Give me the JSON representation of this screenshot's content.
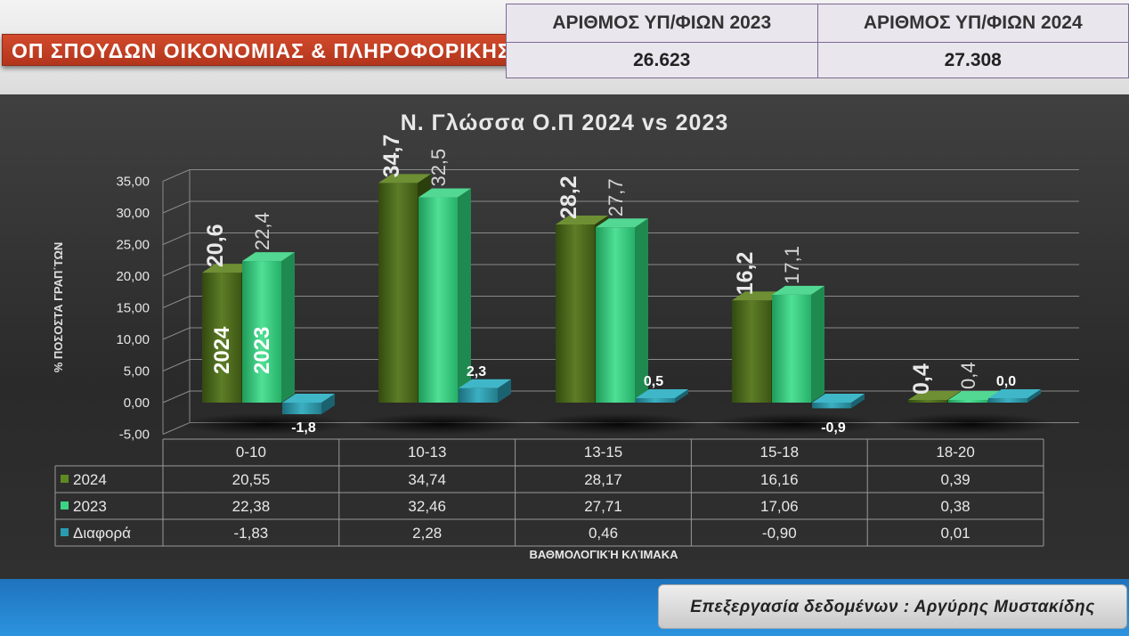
{
  "header": {
    "title": "ΟΠ ΣΠΟΥΔΩΝ ΟΙΚΟΝΟΜΙΑΣ & ΠΛΗΡΟΦΟΡΙΚΗΣ",
    "stats": [
      {
        "label": "ΑΡΙΘΜΟΣ ΥΠ/ΦΙΩΝ 2023",
        "value": "26.623"
      },
      {
        "label": "ΑΡΙΘΜΟΣ ΥΠ/ΦΙΩΝ 2024",
        "value": "27.308"
      }
    ]
  },
  "footer": {
    "credit": "Επεξεργασία δεδομένων : Αργύρης Μυστακίδης"
  },
  "chart_data": {
    "type": "bar",
    "title": "Ν. Γλώσσα Ο.Π 2024 vs 2023",
    "xlabel": "ΒΑΘΜΟΛΟΓΙΚΉ ΚΛΊΜΑΚΑ",
    "ylabel": "% ΠΟΣΟΣΤΑ ΓΡΑΠ΄ΤΩΝ",
    "categories": [
      "0-10",
      "10-13",
      "13-15",
      "15-18",
      "18-20"
    ],
    "yticks": [
      "35,00",
      "30,00",
      "25,00",
      "20,00",
      "15,00",
      "10,00",
      "5,00",
      "0,00",
      "-5,00"
    ],
    "ylim": [
      -5,
      35
    ],
    "grid": true,
    "in_bar_labels": [
      "2024",
      "2023"
    ],
    "series": [
      {
        "name": "2024",
        "color": "#4e6b1f",
        "values": [
          20.55,
          34.74,
          28.17,
          16.16,
          0.39
        ],
        "table": [
          "20,55",
          "34,74",
          "28,17",
          "16,16",
          "0,39"
        ],
        "labels": [
          "20,6",
          "34,7",
          "28,2",
          "16,2",
          "0,4"
        ]
      },
      {
        "name": "2023",
        "color": "#33c77d",
        "values": [
          22.38,
          32.46,
          27.71,
          17.06,
          0.38
        ],
        "table": [
          "22,38",
          "32,46",
          "27,71",
          "17,06",
          "0,38"
        ],
        "labels": [
          "22,4",
          "32,5",
          "27,7",
          "17,1",
          "0,4"
        ]
      },
      {
        "name": "Διαφορά",
        "color": "#2a8fa0",
        "values": [
          -1.83,
          2.28,
          0.46,
          -0.9,
          0.01
        ],
        "table": [
          "-1,83",
          "2,28",
          "0,46",
          "-0,90",
          "0,01"
        ],
        "labels": [
          "-1,8",
          "2,3",
          "0,5",
          "-0,9",
          "0,0"
        ]
      }
    ]
  }
}
